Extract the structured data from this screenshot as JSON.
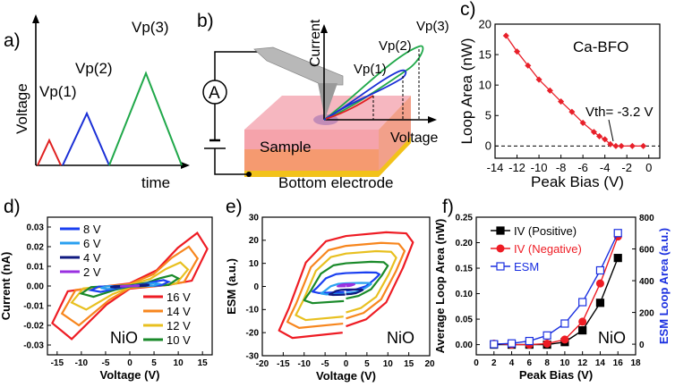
{
  "panel_labels": {
    "a": "a)",
    "b": "b)",
    "c": "c)",
    "d": "d)",
    "e": "e)",
    "f": "f)"
  },
  "schematic_a": {
    "ylabel": "Voltage",
    "xlabel": "time",
    "peaks": [
      "Vp(1)",
      "Vp(2)",
      "Vp(3)"
    ],
    "colors": [
      "#e02020",
      "#1a2fd6",
      "#20a84a"
    ]
  },
  "schematic_b": {
    "ammeter": "A",
    "sample": "Sample",
    "electrode": "Bottom electrode",
    "ylabel": "Current",
    "xlabel": "Voltage",
    "peaks": [
      "Vp(1)",
      "Vp(2)",
      "Vp(3)"
    ]
  },
  "chart_data": [
    {
      "id": "c",
      "type": "line",
      "title": "",
      "annotation": "Ca-BFO",
      "threshold_label": "Vth= -3.2 V",
      "xlabel": "Peak Bias (V)",
      "ylabel": "Loop Area (nW)",
      "xlim": [
        -14,
        1
      ],
      "ylim": [
        -2,
        20
      ],
      "xticks": [
        -14,
        -12,
        -10,
        -8,
        -6,
        -4,
        -2,
        0
      ],
      "yticks": [
        0,
        5,
        10,
        15,
        20
      ],
      "color": "#e8202a",
      "x": [
        -13,
        -12,
        -11,
        -10,
        -9,
        -8,
        -7,
        -6,
        -5,
        -4.5,
        -4,
        -3.5,
        -3,
        -2.5,
        -1.5,
        -0.5
      ],
      "y": [
        18.1,
        15.5,
        13.2,
        10.9,
        9.1,
        7.3,
        5.6,
        3.8,
        2.3,
        1.6,
        1.1,
        0.3,
        0,
        0,
        0,
        0
      ]
    },
    {
      "id": "d",
      "type": "line",
      "annotation": "NiO",
      "xlabel": "Voltage (V)",
      "ylabel": "Current (nA)",
      "xlim": [
        -17,
        17
      ],
      "ylim": [
        -0.035,
        0.035
      ],
      "xticks": [
        -15,
        -10,
        -5,
        0,
        5,
        10,
        15
      ],
      "yticks": [
        -0.03,
        -0.02,
        -0.01,
        0.0,
        0.01,
        0.02,
        0.03
      ],
      "ytick_labels": [
        "-0.03",
        "-0.02",
        "-0.01",
        "0.00",
        "0.01",
        "0.02",
        "0.03"
      ],
      "series": [
        {
          "name": "16 V",
          "peak": 16,
          "imax": 0.027,
          "color": "#ee1c24"
        },
        {
          "name": "14 V",
          "peak": 14,
          "imax": 0.02,
          "color": "#f7861e"
        },
        {
          "name": "12 V",
          "peak": 12,
          "imax": 0.012,
          "color": "#e8c020"
        },
        {
          "name": "10 V",
          "peak": 10,
          "imax": 0.0055,
          "color": "#1a8a2a"
        },
        {
          "name": "8 V",
          "peak": 8,
          "imax": 0.003,
          "color": "#1a3ff0"
        },
        {
          "name": "6 V",
          "peak": 6,
          "imax": 0.0015,
          "color": "#2aa0f0"
        },
        {
          "name": "4 V",
          "peak": 4,
          "imax": 0.0008,
          "color": "#101a80"
        },
        {
          "name": "2 V",
          "peak": 2,
          "imax": 0.0003,
          "color": "#9a30e0"
        }
      ]
    },
    {
      "id": "e",
      "type": "line",
      "annotation": "NiO",
      "xlabel": "Voltage (V)",
      "ylabel": "ESM (a.u.)",
      "xlim": [
        -20,
        20
      ],
      "ylim": [
        -30,
        30
      ],
      "xticks": [
        -20,
        -15,
        -10,
        -5,
        0,
        5,
        10,
        15,
        20
      ],
      "yticks": [
        -30,
        -20,
        -10,
        0,
        10,
        20,
        30
      ],
      "series": [
        {
          "name": "16 V",
          "peak": 16,
          "amp": 23,
          "offset": 0,
          "color": "#ee1c24"
        },
        {
          "name": "14 V",
          "peak": 14,
          "amp": 18.5,
          "offset": 0,
          "color": "#f7861e"
        },
        {
          "name": "12 V",
          "peak": 12,
          "amp": 15,
          "offset": 0,
          "color": "#e8c020"
        },
        {
          "name": "10 V",
          "peak": 10,
          "amp": 9,
          "offset": 1.5,
          "color": "#1a8a2a"
        },
        {
          "name": "8 V",
          "peak": 8,
          "amp": 4.5,
          "offset": 1.5,
          "color": "#1a3ff0"
        },
        {
          "name": "6 V",
          "peak": 6,
          "amp": 2.5,
          "offset": -1,
          "color": "#2aa0f0"
        },
        {
          "name": "4 V",
          "peak": 4,
          "amp": 1.2,
          "offset": -2.5,
          "color": "#101a80"
        },
        {
          "name": "2 V",
          "peak": 2,
          "amp": 0.5,
          "offset": 0.5,
          "color": "#9a30e0"
        }
      ]
    },
    {
      "id": "f",
      "type": "line",
      "annotation": "NiO",
      "xlabel": "Peak Bias (V)",
      "ylabel": "Average Loop Area (nW)",
      "ylabel_right": "ESM Loop Area (a.u.)",
      "xlim": [
        0,
        18
      ],
      "ylim": [
        -0.02,
        0.25
      ],
      "ylim_right": [
        -67,
        800
      ],
      "xticks": [
        0,
        2,
        4,
        6,
        8,
        10,
        12,
        14,
        16,
        18
      ],
      "yticks": [
        0.0,
        0.05,
        0.1,
        0.15,
        0.2,
        0.25
      ],
      "ytick_labels": [
        "0.00",
        "0.05",
        "0.10",
        "0.15",
        "0.20",
        "0.25"
      ],
      "yticks_right": [
        0,
        200,
        400,
        600,
        800
      ],
      "x": [
        2,
        4,
        6,
        8,
        10,
        12,
        14,
        16
      ],
      "series": [
        {
          "name": "IV (Positive)",
          "axis": "left",
          "marker": "filled-square",
          "color": "#000000",
          "values": [
            0,
            0,
            0,
            0,
            0.005,
            0.028,
            0.082,
            0.17
          ]
        },
        {
          "name": "IV (Negative)",
          "axis": "left",
          "marker": "filled-circle",
          "color": "#ee1c24",
          "values": [
            0.002,
            0,
            0,
            0.002,
            0.01,
            0.045,
            0.12,
            0.212
          ]
        },
        {
          "name": "ESM",
          "axis": "right",
          "marker": "open-square",
          "color": "#1a2fe0",
          "values": [
            0,
            5,
            20,
            55,
            130,
            265,
            465,
            700
          ]
        }
      ]
    }
  ]
}
